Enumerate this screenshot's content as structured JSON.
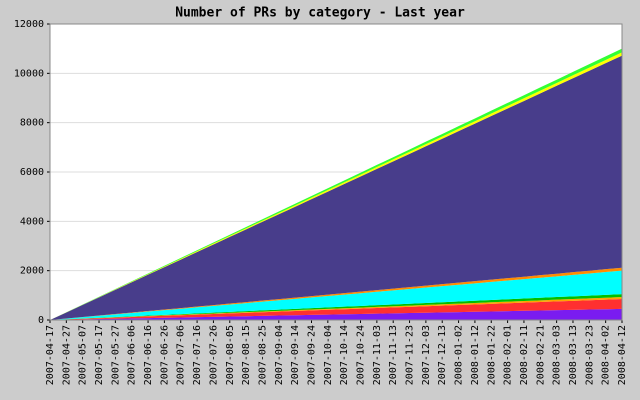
{
  "chart_data": {
    "type": "stacked-area",
    "title": "Number of PRs by category - Last year",
    "categories": [
      "2007-04-17",
      "2007-04-27",
      "2007-05-07",
      "2007-05-17",
      "2007-05-27",
      "2007-06-06",
      "2007-06-16",
      "2007-06-26",
      "2007-07-06",
      "2007-07-16",
      "2007-07-26",
      "2007-08-05",
      "2007-08-15",
      "2007-08-25",
      "2007-09-04",
      "2007-09-14",
      "2007-09-24",
      "2007-10-04",
      "2007-10-14",
      "2007-10-24",
      "2007-11-03",
      "2007-11-13",
      "2007-11-23",
      "2007-12-03",
      "2007-12-13",
      "2008-01-02",
      "2008-01-12",
      "2008-01-22",
      "2008-02-01",
      "2008-02-11",
      "2008-02-21",
      "2008-03-03",
      "2008-03-13",
      "2008-03-23",
      "2008-04-02",
      "2008-04-12"
    ],
    "series": [
      {
        "color": "#7a1cf0",
        "values": [
          0,
          13,
          26,
          39,
          51,
          64,
          77,
          90,
          103,
          116,
          129,
          141,
          154,
          167,
          180,
          193,
          206,
          219,
          231,
          244,
          257,
          270,
          283,
          296,
          309,
          321,
          334,
          347,
          360,
          373,
          386,
          399,
          411,
          424,
          437,
          450
        ]
      },
      {
        "color": "#ff3030",
        "values": [
          0,
          11,
          23,
          34,
          46,
          57,
          69,
          80,
          91,
          103,
          114,
          126,
          137,
          149,
          160,
          171,
          183,
          194,
          206,
          217,
          229,
          240,
          251,
          263,
          274,
          286,
          297,
          309,
          320,
          331,
          343,
          354,
          366,
          377,
          389,
          400
        ]
      },
      {
        "color": "#ffa500",
        "values": [
          0,
          2,
          5,
          7,
          9,
          11,
          14,
          16,
          18,
          21,
          23,
          25,
          27,
          30,
          32,
          34,
          37,
          39,
          41,
          43,
          46,
          48,
          50,
          53,
          55,
          57,
          59,
          62,
          64,
          66,
          69,
          71,
          73,
          75,
          78,
          80
        ]
      },
      {
        "color": "#00c000",
        "values": [
          0,
          3,
          7,
          10,
          14,
          17,
          21,
          24,
          27,
          31,
          34,
          38,
          41,
          45,
          48,
          51,
          55,
          58,
          62,
          65,
          69,
          72,
          75,
          79,
          82,
          86,
          89,
          93,
          96,
          99,
          103,
          106,
          110,
          113,
          117,
          120
        ]
      },
      {
        "color": "#00ffff",
        "values": [
          0,
          27,
          54,
          81,
          109,
          136,
          163,
          190,
          217,
          244,
          271,
          299,
          326,
          353,
          380,
          407,
          434,
          461,
          489,
          516,
          543,
          570,
          597,
          624,
          651,
          679,
          706,
          733,
          760,
          787,
          814,
          841,
          869,
          896,
          923,
          950
        ]
      },
      {
        "color": "#ff8c00",
        "values": [
          0,
          3,
          7,
          10,
          14,
          17,
          21,
          24,
          27,
          31,
          34,
          38,
          41,
          45,
          48,
          51,
          55,
          58,
          62,
          65,
          69,
          72,
          75,
          79,
          82,
          86,
          89,
          93,
          96,
          99,
          103,
          106,
          110,
          113,
          117,
          120
        ]
      },
      {
        "color": "#483d8b",
        "values": [
          0,
          246,
          491,
          737,
          983,
          1229,
          1474,
          1720,
          1966,
          2211,
          2457,
          2703,
          2949,
          3194,
          3440,
          3686,
          3931,
          4177,
          4423,
          4669,
          4914,
          5160,
          5406,
          5651,
          5897,
          6143,
          6389,
          6634,
          6880,
          7126,
          7371,
          7617,
          7863,
          8109,
          8354,
          8600
        ]
      },
      {
        "color": "#ffff00",
        "values": [
          0,
          4,
          7,
          11,
          15,
          19,
          22,
          26,
          30,
          33,
          37,
          41,
          45,
          48,
          52,
          56,
          59,
          63,
          67,
          71,
          74,
          78,
          82,
          85,
          89,
          93,
          97,
          100,
          104,
          108,
          111,
          115,
          119,
          123,
          126,
          130
        ]
      },
      {
        "color": "#33ff33",
        "values": [
          0,
          4,
          9,
          13,
          17,
          21,
          26,
          30,
          34,
          39,
          43,
          47,
          51,
          56,
          60,
          64,
          69,
          73,
          77,
          81,
          86,
          90,
          94,
          99,
          103,
          107,
          111,
          116,
          120,
          124,
          129,
          133,
          137,
          141,
          146,
          150
        ]
      }
    ],
    "ylim": [
      0,
      12000
    ],
    "yticks": [
      0,
      2000,
      4000,
      6000,
      8000,
      10000,
      12000
    ],
    "grid": true
  }
}
